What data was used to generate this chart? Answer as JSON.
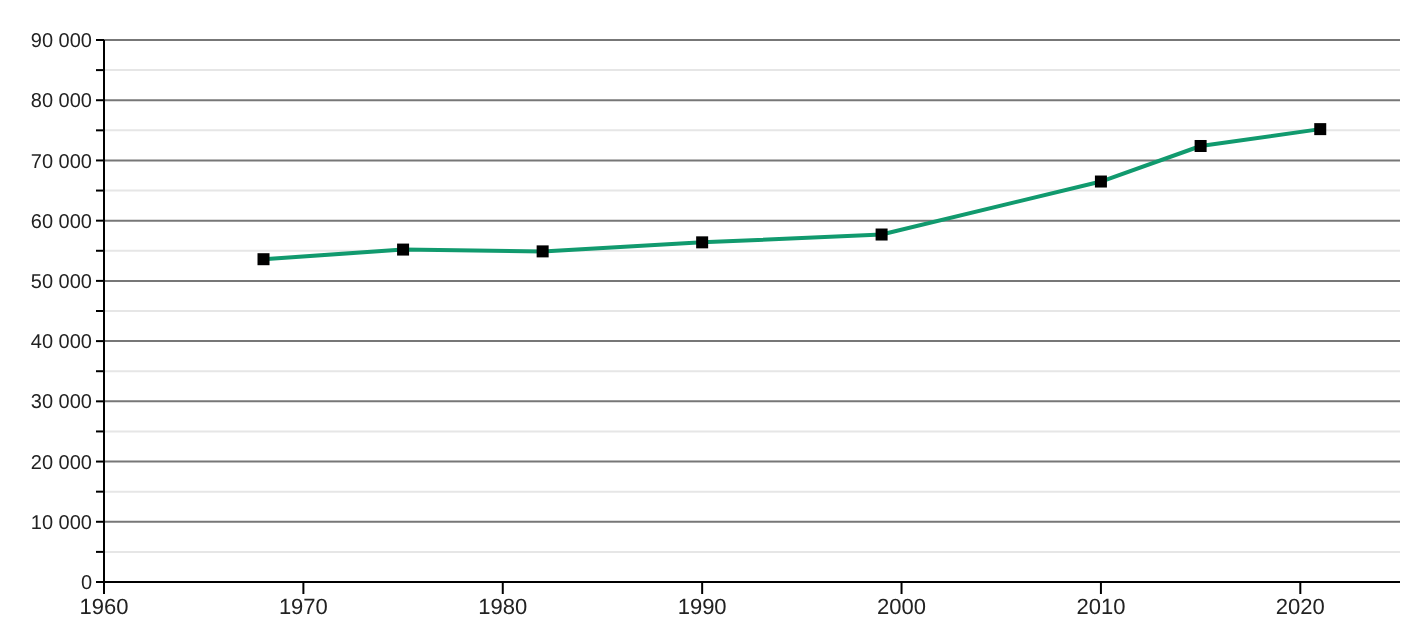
{
  "chart_data": {
    "type": "line",
    "x": [
      1968,
      1975,
      1982,
      1990,
      1999,
      2010,
      2015,
      2021
    ],
    "series": [
      {
        "color": "#119a6e",
        "values": [
          53600,
          55200,
          54900,
          56400,
          57700,
          66500,
          72400,
          75200
        ]
      }
    ],
    "xlim": [
      1960,
      2025
    ],
    "xticks": [
      1960,
      1970,
      1980,
      1990,
      2000,
      2010,
      2020
    ],
    "ylim": [
      0,
      90000
    ],
    "yticks": [
      {
        "value": 0,
        "label": "0"
      },
      {
        "value": 5000,
        "label": null
      },
      {
        "value": 10000,
        "label": "10 000"
      },
      {
        "value": 15000,
        "label": null
      },
      {
        "value": 20000,
        "label": "20 000"
      },
      {
        "value": 25000,
        "label": null
      },
      {
        "value": 30000,
        "label": "30 000"
      },
      {
        "value": 35000,
        "label": null
      },
      {
        "value": 40000,
        "label": "40 000"
      },
      {
        "value": 45000,
        "label": null
      },
      {
        "value": 50000,
        "label": "50 000"
      },
      {
        "value": 55000,
        "label": null
      },
      {
        "value": 60000,
        "label": "60 000"
      },
      {
        "value": 65000,
        "label": null
      },
      {
        "value": 70000,
        "label": "70 000"
      },
      {
        "value": 75000,
        "label": null
      },
      {
        "value": 80000,
        "label": "80 000"
      },
      {
        "value": 85000,
        "label": null
      },
      {
        "value": 90000,
        "label": "90 000"
      }
    ],
    "grid": "y",
    "marker": "square",
    "line_style": "solid"
  }
}
